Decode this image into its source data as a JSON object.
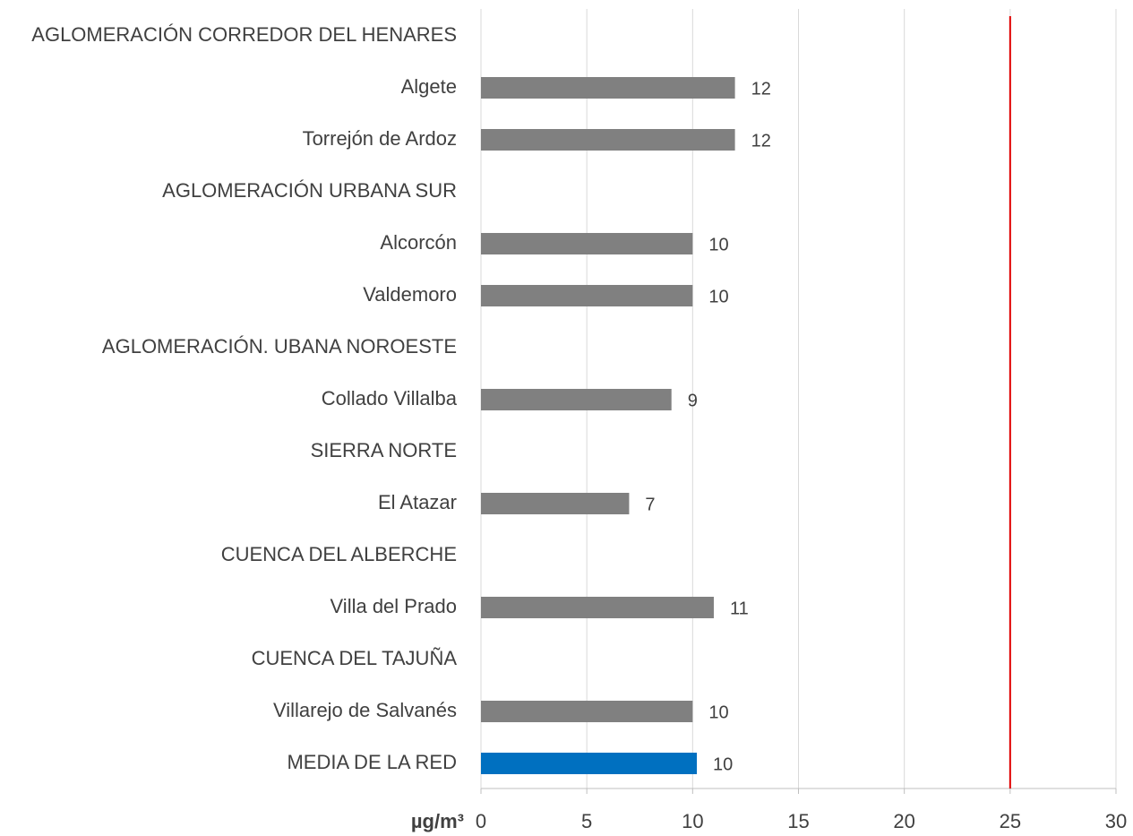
{
  "chart_data": {
    "type": "barh",
    "categories": [
      "AGLOMERACIÓN CORREDOR DEL HENARES",
      "Algete",
      "Torrejón de Ardoz",
      "AGLOMERACIÓN URBANA SUR",
      "Alcorcón",
      "Valdemoro",
      "AGLOMERACIÓN. UBANA NOROESTE",
      "Collado Villalba",
      "SIERRA NORTE",
      "El Atazar",
      "CUENCA DEL ALBERCHE",
      "Villa del Prado",
      "CUENCA DEL TAJUÑA",
      "Villarejo de Salvanés",
      "MEDIA DE LA RED"
    ],
    "values": [
      null,
      12,
      12,
      null,
      10,
      10,
      null,
      9,
      null,
      7,
      null,
      11,
      null,
      10,
      10.2
    ],
    "value_labels": [
      null,
      "12",
      "12",
      null,
      "10",
      "10",
      null,
      "9",
      null,
      "7",
      null,
      "11",
      null,
      "10",
      "10"
    ],
    "colors": [
      null,
      "#808080",
      "#808080",
      null,
      "#808080",
      "#808080",
      null,
      "#808080",
      null,
      "#808080",
      null,
      "#808080",
      null,
      "#808080",
      "#0070c0"
    ],
    "xlabel": "µg/m³",
    "xlim": [
      0,
      30
    ],
    "xticks": [
      0,
      5,
      10,
      15,
      20,
      25,
      30
    ],
    "grid": true,
    "reference_line": {
      "value": 25,
      "color": "#e00000"
    }
  }
}
